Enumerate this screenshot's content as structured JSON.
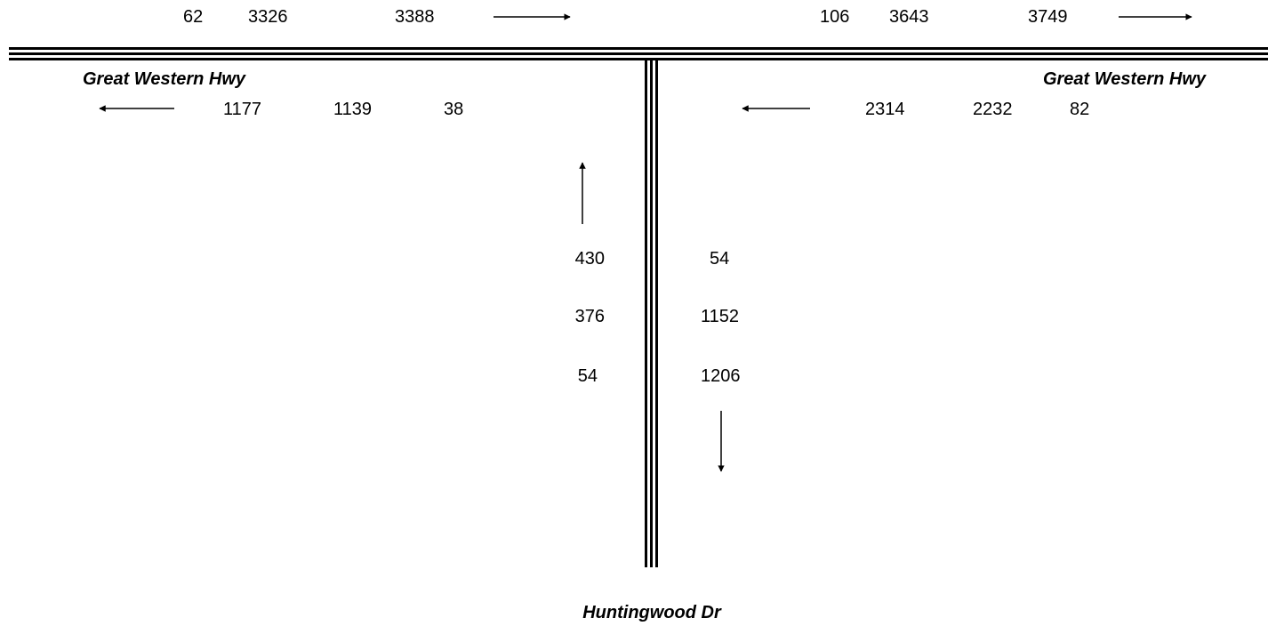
{
  "roads": {
    "west_label": "Great Western Hwy",
    "east_label": "Great Western Hwy",
    "south_label": "Huntingwood Dr"
  },
  "counts": {
    "top_west": [
      "62",
      "3326",
      "3388"
    ],
    "top_east": [
      "106",
      "3643",
      "3749"
    ],
    "west_bound_left": [
      "1177",
      "1139",
      "38"
    ],
    "west_bound_right": [
      "2314",
      "2232",
      "82"
    ],
    "south_north_col": [
      "430",
      "376",
      "54"
    ],
    "south_south_col": [
      "54",
      "1152",
      "1206"
    ]
  },
  "arrows": {
    "top_west": "right-arrow-icon",
    "top_east": "right-arrow-icon",
    "west_left": "left-arrow-icon",
    "west_right": "left-arrow-icon",
    "south_up": "up-arrow-icon",
    "south_down": "down-arrow-icon"
  }
}
